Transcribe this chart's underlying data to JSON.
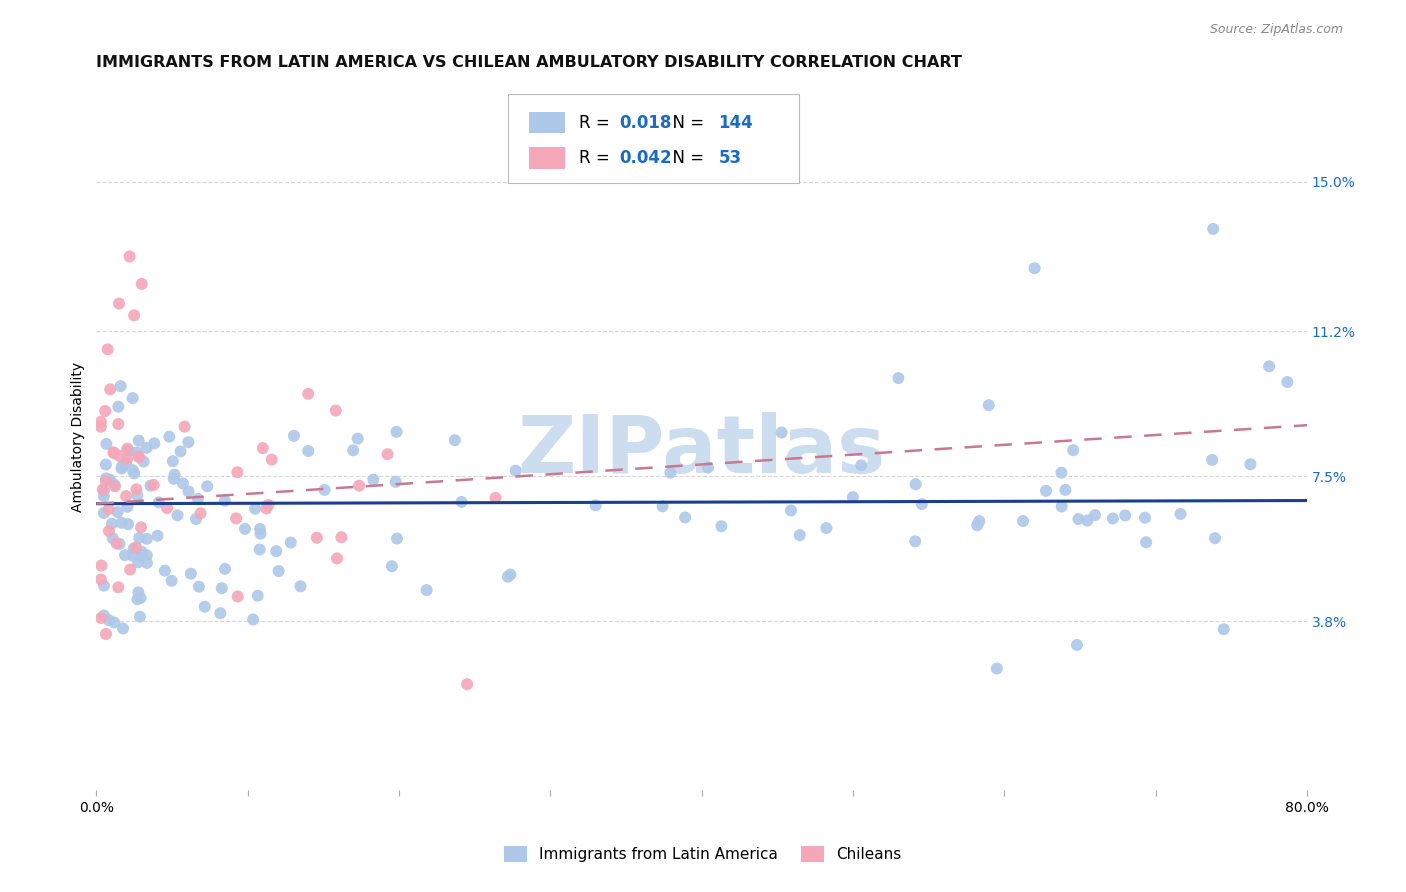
{
  "title": "IMMIGRANTS FROM LATIN AMERICA VS CHILEAN AMBULATORY DISABILITY CORRELATION CHART",
  "source": "Source: ZipAtlas.com",
  "ylabel": "Ambulatory Disability",
  "ytick_labels": [
    "15.0%",
    "11.2%",
    "7.5%",
    "3.8%"
  ],
  "ytick_values": [
    0.15,
    0.112,
    0.075,
    0.038
  ],
  "xlim": [
    0.0,
    0.8
  ],
  "ylim": [
    -0.005,
    0.175
  ],
  "legend_entries": [
    {
      "label": "Immigrants from Latin America",
      "color": "#adc8e8",
      "R": "0.018",
      "N": "144"
    },
    {
      "label": "Chileans",
      "color": "#f4a7b9",
      "R": "0.042",
      "N": "53"
    }
  ],
  "blue_line_color": "#1a3f8f",
  "pink_line_color": "#c87890",
  "grid_color": "#cccccc",
  "watermark_text": "ZIPatlas",
  "watermark_color": "#ccddf0",
  "background_color": "#ffffff",
  "title_fontsize": 11.5,
  "axis_label_fontsize": 10,
  "tick_fontsize": 10,
  "ytick_color": "#1a6bc4",
  "blue_line_slope": 0.001,
  "blue_line_intercept": 0.068,
  "pink_line_slope": 0.025,
  "pink_line_intercept": 0.068
}
